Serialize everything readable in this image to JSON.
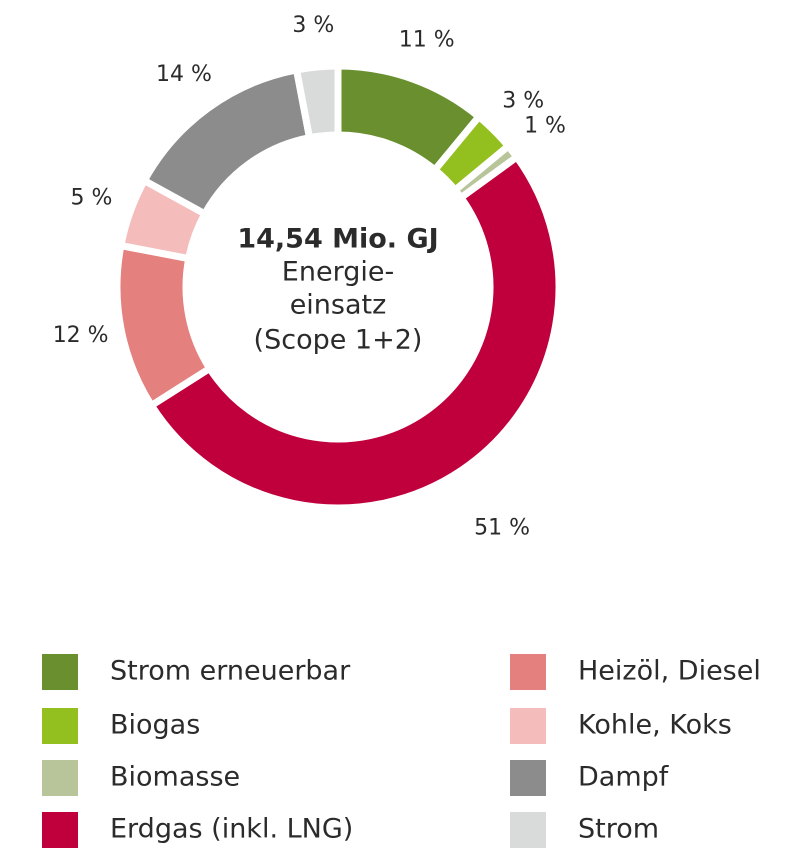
{
  "chart_data": {
    "type": "donut",
    "center_label": [
      "14,54 Mio. GJ",
      "Energie-",
      "einsatz",
      "(Scope 1+2)"
    ],
    "categories": [
      "Strom erneuerbar",
      "Biogas",
      "Biomasse",
      "Erdgas (inkl. LNG)",
      "Heizöl, Diesel",
      "Kohle, Koks",
      "Dampf",
      "Strom"
    ],
    "values": [
      11,
      3,
      1,
      51,
      12,
      5,
      14,
      3
    ],
    "value_labels": [
      "11 %",
      "3 %",
      "1 %",
      "51 %",
      "12 %",
      "5 %",
      "14 %",
      "3 %"
    ],
    "colors": [
      "#6a8f2f",
      "#93c01f",
      "#b8c49a",
      "#c0003c",
      "#e4807e",
      "#f4bcbb",
      "#8c8c8c",
      "#d9dada"
    ]
  }
}
